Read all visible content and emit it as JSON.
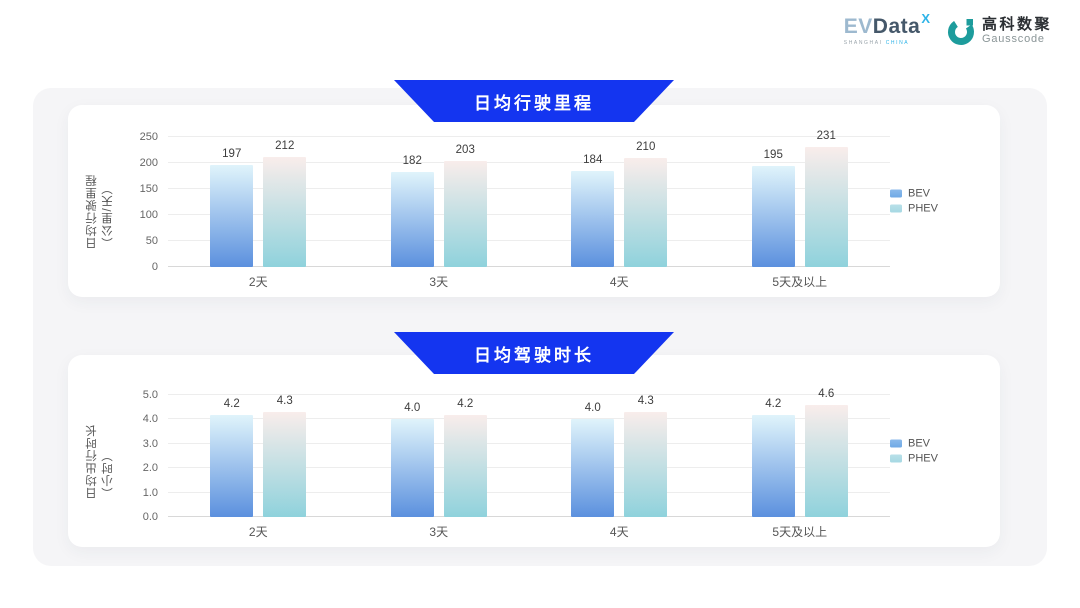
{
  "logo": {
    "evdata_ev": "EV",
    "evdata_data": "Data",
    "evdata_sup": "X",
    "evdata_sub_left": "SHANGHAI",
    "evdata_sub_right": "CHINA",
    "gausscode_cn": "高科数聚",
    "gausscode_en": "Gausscode"
  },
  "colors": {
    "banner_blue": "#1435f0",
    "panel_bg": "#f5f5f7",
    "card_bg": "#ffffff",
    "gausscode_teal": "#1d9c9c",
    "evdata_cyan": "#2fb4e8"
  },
  "chart_data": [
    {
      "type": "bar",
      "title": "日均行驶里程",
      "ylabel": "日均行驶里程（公里/天）",
      "xlabel": "",
      "categories": [
        "2天",
        "3天",
        "4天",
        "5天及以上"
      ],
      "series": [
        {
          "name": "BEV",
          "values": [
            197,
            182,
            184,
            195
          ],
          "labels": [
            "197",
            "182",
            "184",
            "195"
          ],
          "gradient": [
            "#e0f4fb",
            "#5b90de"
          ],
          "legend_color": "#6fa9e6"
        },
        {
          "name": "PHEV",
          "values": [
            212,
            203,
            210,
            231
          ],
          "labels": [
            "212",
            "203",
            "210",
            "231"
          ],
          "gradient": [
            "#f9edeb",
            "#8fd2dc"
          ],
          "legend_color": "#a6d8e3"
        }
      ],
      "ylim": [
        0,
        250
      ],
      "yticks": [
        "0",
        "50",
        "100",
        "150",
        "200",
        "250"
      ],
      "grid": true,
      "legend_position": "right"
    },
    {
      "type": "bar",
      "title": "日均驾驶时长",
      "ylabel": "日均出行时长（小时）",
      "xlabel": "",
      "categories": [
        "2天",
        "3天",
        "4天",
        "5天及以上"
      ],
      "series": [
        {
          "name": "BEV",
          "values": [
            4.2,
            4.0,
            4.0,
            4.2
          ],
          "labels": [
            "4.2",
            "4.0",
            "4.0",
            "4.2"
          ],
          "gradient": [
            "#e0f4fb",
            "#5b90de"
          ],
          "legend_color": "#6fa9e6"
        },
        {
          "name": "PHEV",
          "values": [
            4.3,
            4.2,
            4.3,
            4.6
          ],
          "labels": [
            "4.3",
            "4.2",
            "4.3",
            "4.6"
          ],
          "gradient": [
            "#f9edeb",
            "#8fd2dc"
          ],
          "legend_color": "#a6d8e3"
        }
      ],
      "ylim": [
        0,
        5
      ],
      "yticks": [
        "0.0",
        "1.0",
        "2.0",
        "3.0",
        "4.0",
        "5.0"
      ],
      "grid": true,
      "legend_position": "right"
    }
  ]
}
